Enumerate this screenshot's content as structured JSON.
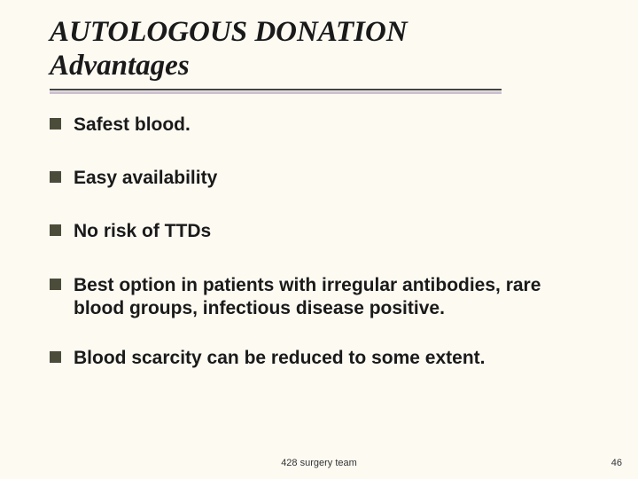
{
  "colors": {
    "background": "#fdfaf2",
    "text": "#1a1a1a",
    "bullet_marker": "#4c4c3a",
    "underline": "#444444",
    "underline_shadow": "#b7a8c2"
  },
  "typography": {
    "title_font": "Times New Roman",
    "title_style": "italic",
    "title_weight": "bold",
    "title_size_pt": 28,
    "body_font": "Arial",
    "body_weight": "bold",
    "body_size_pt": 18,
    "footer_size_pt": 9
  },
  "title": {
    "line1": "AUTOLOGOUS DONATION",
    "line2": "Advantages"
  },
  "bullets": [
    "Safest blood.",
    "Easy availability",
    "No risk of TTDs",
    "Best option in patients with irregular antibodies, rare blood groups, infectious disease positive.",
    "Blood scarcity can be reduced to some extent."
  ],
  "footer": {
    "center": "428 surgery team",
    "page_number": "46"
  }
}
